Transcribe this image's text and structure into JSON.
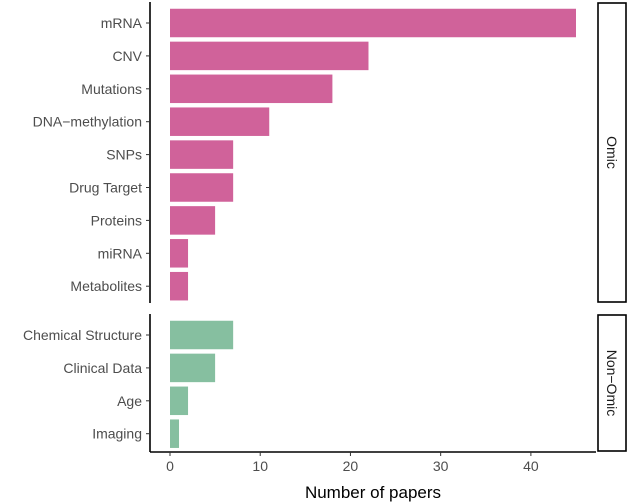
{
  "chart_data": {
    "type": "bar",
    "orientation": "horizontal",
    "xlabel": "Number of papers",
    "xlim": [
      0,
      45
    ],
    "x_ticks": [
      0,
      10,
      20,
      30,
      40
    ],
    "grid": false,
    "facet_strip_position": "right",
    "panels": [
      {
        "name": "Omic",
        "color": "#d0629a",
        "categories": [
          "mRNA",
          "CNV",
          "Mutations",
          "DNA−methylation",
          "SNPs",
          "Drug Target",
          "Proteins",
          "miRNA",
          "Metabolites"
        ],
        "values": [
          45,
          22,
          18,
          11,
          7,
          7,
          5,
          2,
          2
        ]
      },
      {
        "name": "Non−Omic",
        "color": "#86bfa0",
        "categories": [
          "Chemical Structure",
          "Clinical Data",
          "Age",
          "Imaging"
        ],
        "values": [
          7,
          5,
          2,
          1
        ]
      }
    ]
  }
}
